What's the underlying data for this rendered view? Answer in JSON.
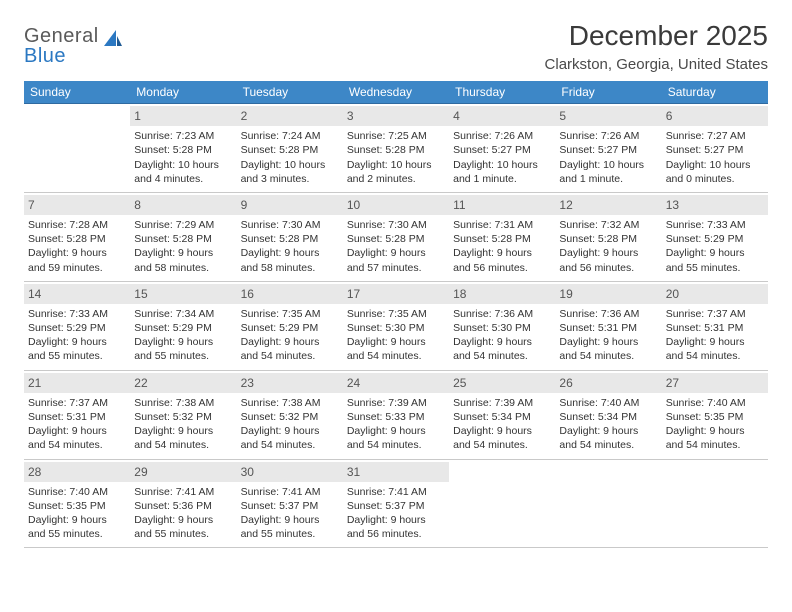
{
  "logo": {
    "word1": "General",
    "word2": "Blue"
  },
  "title": "December 2025",
  "subtitle": "Clarkston, Georgia, United States",
  "colors": {
    "header_bg": "#3d87c7",
    "header_fg": "#ffffff",
    "row_top_border": "#2f6aa0",
    "daynum_bg": "#e8e8e8",
    "logo_blue": "#2b78c2"
  },
  "daynames": [
    "Sunday",
    "Monday",
    "Tuesday",
    "Wednesday",
    "Thursday",
    "Friday",
    "Saturday"
  ],
  "weeks": [
    [
      {
        "n": "",
        "sr": "",
        "ss": "",
        "dl": ""
      },
      {
        "n": "1",
        "sr": "Sunrise: 7:23 AM",
        "ss": "Sunset: 5:28 PM",
        "dl": "Daylight: 10 hours and 4 minutes."
      },
      {
        "n": "2",
        "sr": "Sunrise: 7:24 AM",
        "ss": "Sunset: 5:28 PM",
        "dl": "Daylight: 10 hours and 3 minutes."
      },
      {
        "n": "3",
        "sr": "Sunrise: 7:25 AM",
        "ss": "Sunset: 5:28 PM",
        "dl": "Daylight: 10 hours and 2 minutes."
      },
      {
        "n": "4",
        "sr": "Sunrise: 7:26 AM",
        "ss": "Sunset: 5:27 PM",
        "dl": "Daylight: 10 hours and 1 minute."
      },
      {
        "n": "5",
        "sr": "Sunrise: 7:26 AM",
        "ss": "Sunset: 5:27 PM",
        "dl": "Daylight: 10 hours and 1 minute."
      },
      {
        "n": "6",
        "sr": "Sunrise: 7:27 AM",
        "ss": "Sunset: 5:27 PM",
        "dl": "Daylight: 10 hours and 0 minutes."
      }
    ],
    [
      {
        "n": "7",
        "sr": "Sunrise: 7:28 AM",
        "ss": "Sunset: 5:28 PM",
        "dl": "Daylight: 9 hours and 59 minutes."
      },
      {
        "n": "8",
        "sr": "Sunrise: 7:29 AM",
        "ss": "Sunset: 5:28 PM",
        "dl": "Daylight: 9 hours and 58 minutes."
      },
      {
        "n": "9",
        "sr": "Sunrise: 7:30 AM",
        "ss": "Sunset: 5:28 PM",
        "dl": "Daylight: 9 hours and 58 minutes."
      },
      {
        "n": "10",
        "sr": "Sunrise: 7:30 AM",
        "ss": "Sunset: 5:28 PM",
        "dl": "Daylight: 9 hours and 57 minutes."
      },
      {
        "n": "11",
        "sr": "Sunrise: 7:31 AM",
        "ss": "Sunset: 5:28 PM",
        "dl": "Daylight: 9 hours and 56 minutes."
      },
      {
        "n": "12",
        "sr": "Sunrise: 7:32 AM",
        "ss": "Sunset: 5:28 PM",
        "dl": "Daylight: 9 hours and 56 minutes."
      },
      {
        "n": "13",
        "sr": "Sunrise: 7:33 AM",
        "ss": "Sunset: 5:29 PM",
        "dl": "Daylight: 9 hours and 55 minutes."
      }
    ],
    [
      {
        "n": "14",
        "sr": "Sunrise: 7:33 AM",
        "ss": "Sunset: 5:29 PM",
        "dl": "Daylight: 9 hours and 55 minutes."
      },
      {
        "n": "15",
        "sr": "Sunrise: 7:34 AM",
        "ss": "Sunset: 5:29 PM",
        "dl": "Daylight: 9 hours and 55 minutes."
      },
      {
        "n": "16",
        "sr": "Sunrise: 7:35 AM",
        "ss": "Sunset: 5:29 PM",
        "dl": "Daylight: 9 hours and 54 minutes."
      },
      {
        "n": "17",
        "sr": "Sunrise: 7:35 AM",
        "ss": "Sunset: 5:30 PM",
        "dl": "Daylight: 9 hours and 54 minutes."
      },
      {
        "n": "18",
        "sr": "Sunrise: 7:36 AM",
        "ss": "Sunset: 5:30 PM",
        "dl": "Daylight: 9 hours and 54 minutes."
      },
      {
        "n": "19",
        "sr": "Sunrise: 7:36 AM",
        "ss": "Sunset: 5:31 PM",
        "dl": "Daylight: 9 hours and 54 minutes."
      },
      {
        "n": "20",
        "sr": "Sunrise: 7:37 AM",
        "ss": "Sunset: 5:31 PM",
        "dl": "Daylight: 9 hours and 54 minutes."
      }
    ],
    [
      {
        "n": "21",
        "sr": "Sunrise: 7:37 AM",
        "ss": "Sunset: 5:31 PM",
        "dl": "Daylight: 9 hours and 54 minutes."
      },
      {
        "n": "22",
        "sr": "Sunrise: 7:38 AM",
        "ss": "Sunset: 5:32 PM",
        "dl": "Daylight: 9 hours and 54 minutes."
      },
      {
        "n": "23",
        "sr": "Sunrise: 7:38 AM",
        "ss": "Sunset: 5:32 PM",
        "dl": "Daylight: 9 hours and 54 minutes."
      },
      {
        "n": "24",
        "sr": "Sunrise: 7:39 AM",
        "ss": "Sunset: 5:33 PM",
        "dl": "Daylight: 9 hours and 54 minutes."
      },
      {
        "n": "25",
        "sr": "Sunrise: 7:39 AM",
        "ss": "Sunset: 5:34 PM",
        "dl": "Daylight: 9 hours and 54 minutes."
      },
      {
        "n": "26",
        "sr": "Sunrise: 7:40 AM",
        "ss": "Sunset: 5:34 PM",
        "dl": "Daylight: 9 hours and 54 minutes."
      },
      {
        "n": "27",
        "sr": "Sunrise: 7:40 AM",
        "ss": "Sunset: 5:35 PM",
        "dl": "Daylight: 9 hours and 54 minutes."
      }
    ],
    [
      {
        "n": "28",
        "sr": "Sunrise: 7:40 AM",
        "ss": "Sunset: 5:35 PM",
        "dl": "Daylight: 9 hours and 55 minutes."
      },
      {
        "n": "29",
        "sr": "Sunrise: 7:41 AM",
        "ss": "Sunset: 5:36 PM",
        "dl": "Daylight: 9 hours and 55 minutes."
      },
      {
        "n": "30",
        "sr": "Sunrise: 7:41 AM",
        "ss": "Sunset: 5:37 PM",
        "dl": "Daylight: 9 hours and 55 minutes."
      },
      {
        "n": "31",
        "sr": "Sunrise: 7:41 AM",
        "ss": "Sunset: 5:37 PM",
        "dl": "Daylight: 9 hours and 56 minutes."
      },
      {
        "n": "",
        "sr": "",
        "ss": "",
        "dl": ""
      },
      {
        "n": "",
        "sr": "",
        "ss": "",
        "dl": ""
      },
      {
        "n": "",
        "sr": "",
        "ss": "",
        "dl": ""
      }
    ]
  ]
}
